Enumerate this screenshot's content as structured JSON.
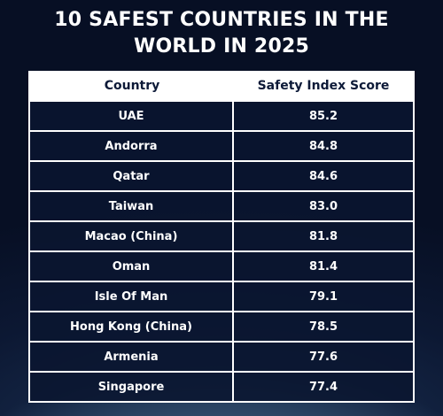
{
  "title": "10 SAFEST COUNTRIES IN THE WORLD IN 2025",
  "table": {
    "header": [
      "Country",
      "Safety Index Score"
    ],
    "rows": [
      [
        "UAE",
        "85.2"
      ],
      [
        "Andorra",
        "84.8"
      ],
      [
        "Qatar",
        "84.6"
      ],
      [
        "Taiwan",
        "83.0"
      ],
      [
        "Macao (China)",
        "81.8"
      ],
      [
        "Oman",
        "81.4"
      ],
      [
        "Isle Of Man",
        "79.1"
      ],
      [
        "Hong Kong (China)",
        "78.5"
      ],
      [
        "Armenia",
        "77.6"
      ],
      [
        "Singapore",
        "77.4"
      ]
    ]
  }
}
